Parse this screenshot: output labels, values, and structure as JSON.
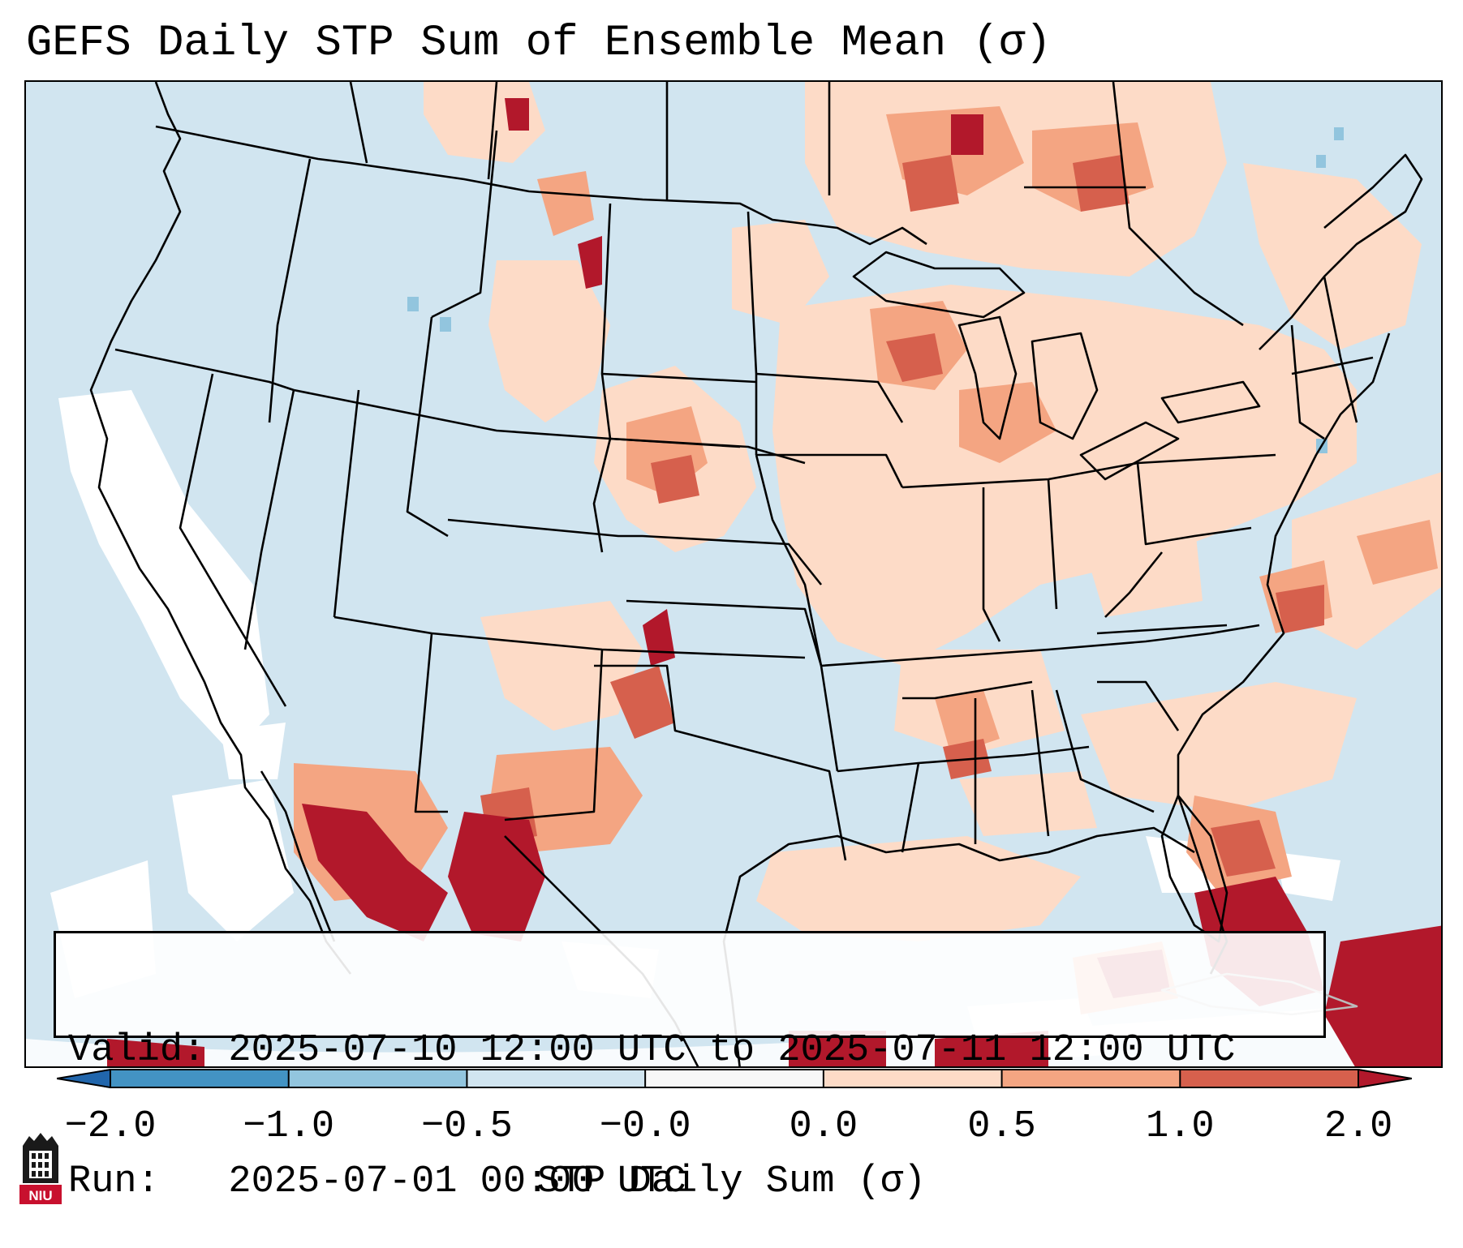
{
  "title": "GEFS Daily STP Sum of Ensemble Mean (σ)",
  "info": {
    "valid": "Valid: 2025-07-10 12:00 UTC to 2025-07-11 12:00 UTC",
    "run": "Run:   2025-07-01 00:00 UTC"
  },
  "colorbar": {
    "label": "STP Daily Sum (σ)",
    "ticks": [
      "−2.0",
      "−1.0",
      "−0.5",
      "−0.0",
      "0.0",
      "0.5",
      "1.0",
      "2.0"
    ],
    "colors": [
      "#2166ac",
      "#4393c3",
      "#92c5de",
      "#d1e5f0",
      "#f7f7f7",
      "#fddbc7",
      "#f4a582",
      "#d6604d",
      "#b2182b"
    ],
    "extend": "both"
  },
  "colors": {
    "background_class": "#d1e5f0",
    "neutral": "#ffffff",
    "low_positive": "#fddbc7",
    "mid_positive": "#f4a582",
    "high_positive": "#d6604d",
    "extreme_positive": "#b2182b",
    "low_negative": "#92c5de"
  },
  "logo": {
    "text": "NIU",
    "icon": "niu-tower-logo-icon"
  }
}
